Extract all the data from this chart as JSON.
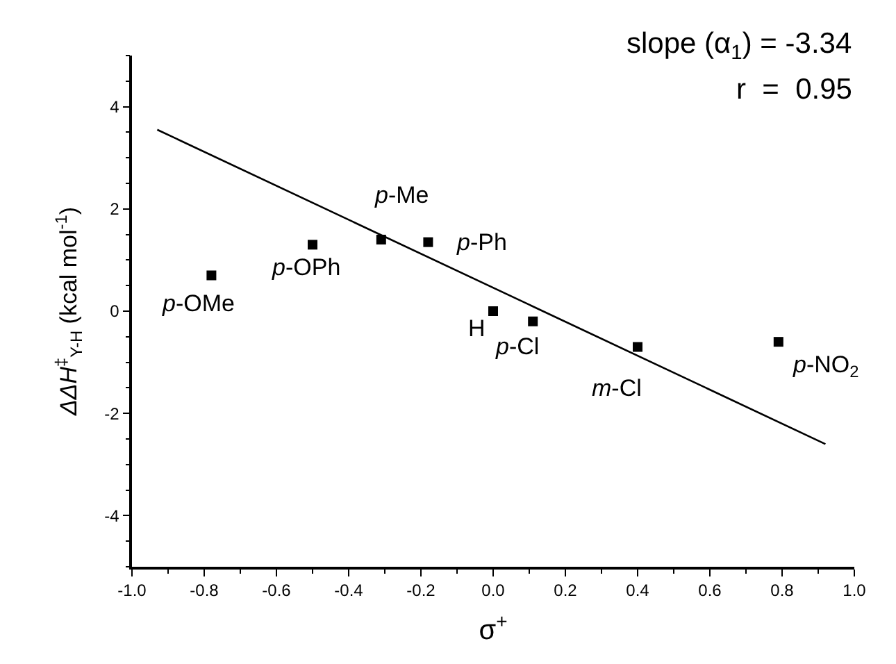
{
  "chart_data": {
    "type": "scatter",
    "xlabel": "σ$^{+}$",
    "ylabel": "ΔΔH$^{‡}$$_{Y-H}$ (kcal mol$^{-1}$)",
    "xlim": [
      -1.0,
      1.0
    ],
    "ylim": [
      -5,
      5
    ],
    "xticks": [
      {
        "value": -1.0,
        "label": "-1.0"
      },
      -0.8,
      -0.6,
      -0.4,
      -0.2,
      {
        "value": 0,
        "label": "0.0"
      },
      0.2,
      0.4,
      0.6,
      0.8,
      {
        "value": 1.0,
        "label": "1.0"
      }
    ],
    "yticks": [
      -4,
      -2,
      0,
      2,
      4
    ],
    "series": [
      {
        "marker": "square",
        "color": "#000000",
        "x": [
          -0.78,
          -0.5,
          -0.31,
          -0.18,
          0.0,
          0.11,
          0.4,
          0.79
        ],
        "values": [
          0.7,
          1.3,
          1.4,
          1.35,
          0.0,
          -0.2,
          -0.7,
          -0.6
        ]
      },
      {
        "type": "line",
        "marker": "none",
        "line_style": "solid",
        "color": "#000000",
        "x": [
          -0.93,
          0.92
        ],
        "values": [
          3.55,
          -2.6
        ]
      }
    ],
    "annotations": [
      {
        "text": "p-OMe",
        "x": -0.78,
        "y": 0.7
      },
      {
        "text": "p-OPh",
        "x": -0.5,
        "y": 1.3
      },
      {
        "text": "p-Me",
        "x": -0.31,
        "y": 1.4
      },
      {
        "text": "p-Ph",
        "x": -0.18,
        "y": 1.35
      },
      {
        "text": "H",
        "x": 0.0,
        "y": 0.0
      },
      {
        "text": "p-Cl",
        "x": 0.11,
        "y": -0.2
      },
      {
        "text": "m-Cl",
        "x": 0.4,
        "y": -0.7
      },
      {
        "text": "p-NO$_{2}$",
        "x": 0.79,
        "y": -0.6
      },
      "slope (α$_{1}$) = -3.34",
      "r  =  0.95"
    ]
  }
}
